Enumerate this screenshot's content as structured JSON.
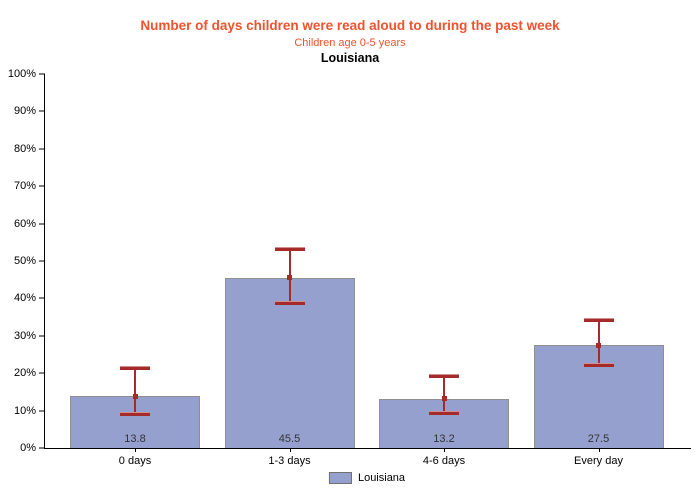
{
  "chart_data": {
    "type": "bar",
    "title": "Number of days children were read aloud to during the past week",
    "subtitle": "Children age 0-5 years",
    "region": "Louisiana",
    "categories": [
      "0 days",
      "1-3 days",
      "4-6 days",
      "Every day"
    ],
    "series": [
      {
        "name": "Louisiana",
        "values": [
          13.8,
          45.5,
          13.2,
          27.5
        ],
        "ci_low": [
          9.0,
          38.7,
          9.4,
          22.1
        ],
        "ci_high": [
          21.5,
          53.2,
          19.2,
          34.3
        ]
      }
    ],
    "value_labels": [
      "13.8",
      "45.5",
      "13.2",
      "27.5"
    ],
    "xlabel": "",
    "ylabel": "",
    "ylim": [
      0,
      100
    ],
    "yticks": [
      "0%",
      "10%",
      "20%",
      "30%",
      "40%",
      "50%",
      "60%",
      "70%",
      "80%",
      "90%",
      "100%"
    ],
    "grid": false,
    "error_bars": true,
    "legend": [
      "Louisiana"
    ],
    "legend_position": "bottom-center"
  },
  "colors": {
    "title": "#F0522D",
    "subtitle": "#F0522D",
    "region": "#000000",
    "bar_fill": "#96A0CE",
    "bar_border": "#8F8F8F",
    "error": "#A52A2A",
    "error_light": "#D09090",
    "axis": "#000000"
  }
}
